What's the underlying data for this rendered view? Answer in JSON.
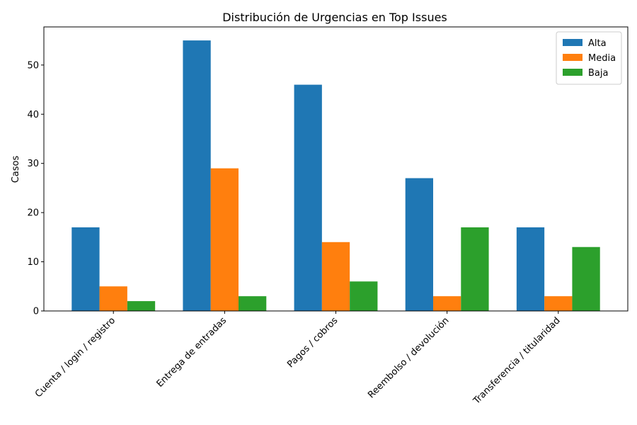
{
  "chart_data": {
    "type": "bar",
    "title": "Distribución de Urgencias en Top Issues",
    "xlabel": "",
    "ylabel": "Casos",
    "categories": [
      "Cuenta / login / registro",
      "Entrega de entradas",
      "Pagos / cobros",
      "Reembolso / devolución",
      "Transferencia / titularidad"
    ],
    "series": [
      {
        "name": "Alta",
        "color": "#1f77b4",
        "values": [
          17,
          55,
          46,
          27,
          17
        ]
      },
      {
        "name": "Media",
        "color": "#ff7f0e",
        "values": [
          5,
          29,
          14,
          3,
          3
        ]
      },
      {
        "name": "Baja",
        "color": "#2ca02c",
        "values": [
          2,
          3,
          6,
          17,
          13
        ]
      }
    ],
    "ylim": [
      0,
      57.75
    ],
    "yticks": [
      0,
      10,
      20,
      30,
      40,
      50
    ],
    "legend": "top-right",
    "grid": false
  }
}
